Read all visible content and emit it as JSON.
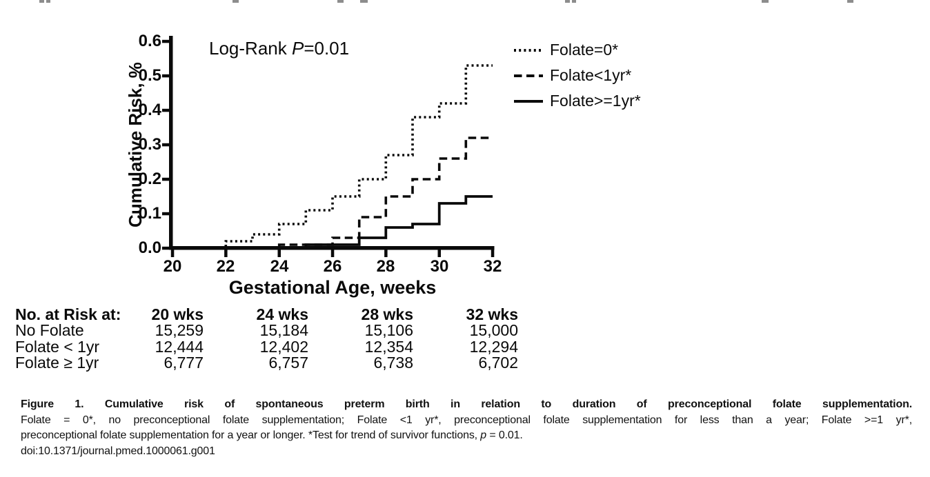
{
  "chart_data": {
    "type": "line",
    "subtype": "kaplan-meier-step-cumulative-risk",
    "annotation": {
      "prefix": "Log-Rank ",
      "italic": "P",
      "suffix": "=0.01"
    },
    "xlabel": "Gestational Age, weeks",
    "ylabel": "Cumulative Risk, %",
    "xlim": [
      20,
      32
    ],
    "ylim": [
      0,
      0.6
    ],
    "x_tick_labels": [
      "20",
      "22",
      "24",
      "26",
      "28",
      "30",
      "32"
    ],
    "y_tick_labels": [
      "0.6",
      "0.5",
      "0.4",
      "0.3",
      "0.2",
      "0.1",
      "0.0"
    ],
    "grid": false,
    "legend_position": "upper right, outside plot",
    "series": [
      {
        "name": "Folate=0*",
        "style": "dotted",
        "steps": [
          [
            22,
            0.02
          ],
          [
            23,
            0.04
          ],
          [
            24,
            0.07
          ],
          [
            25,
            0.11
          ],
          [
            26,
            0.15
          ],
          [
            27,
            0.2
          ],
          [
            28,
            0.27
          ],
          [
            29,
            0.38
          ],
          [
            30,
            0.42
          ],
          [
            31,
            0.53
          ]
        ],
        "end_week": 32,
        "end_value": 0.53
      },
      {
        "name": "Folate<1yr*",
        "style": "dashed",
        "steps": [
          [
            24,
            0.01
          ],
          [
            26,
            0.03
          ],
          [
            27,
            0.09
          ],
          [
            28,
            0.15
          ],
          [
            29,
            0.2
          ],
          [
            30,
            0.26
          ],
          [
            31,
            0.32
          ]
        ],
        "end_week": 32,
        "end_value": 0.32
      },
      {
        "name": "Folate>=1yr*",
        "style": "solid",
        "steps": [
          [
            25,
            0.01
          ],
          [
            27,
            0.03
          ],
          [
            28,
            0.06
          ],
          [
            29,
            0.07
          ],
          [
            30,
            0.13
          ],
          [
            31,
            0.15
          ]
        ],
        "end_week": 32,
        "end_value": 0.15
      }
    ],
    "line_color": "#0a0a0a"
  },
  "risk_table": {
    "header": [
      "No. at Risk at:",
      "20 wks",
      "24 wks",
      "28 wks",
      "32 wks"
    ],
    "rows": [
      {
        "label": "No Folate",
        "values": [
          "15,259",
          "15,184",
          "15,106",
          "15,000"
        ]
      },
      {
        "label": "Folate < 1yr",
        "values": [
          "12,444",
          "12,402",
          "12,354",
          "12,294"
        ]
      },
      {
        "label": "Folate ≥ 1yr",
        "values": [
          "6,777",
          "6,757",
          "6,738",
          "6,702"
        ]
      }
    ]
  },
  "caption": {
    "line1": "Figure 1. Cumulative risk of spontaneous preterm birth in relation to duration of preconceptional folate supplementation.",
    "line2": "Folate = 0*, no preconceptional folate supplementation; Folate <1 yr*, preconceptional folate supplementation for less than a year; Folate >=1 yr*,",
    "line3_pre": "preconceptional folate supplementation for a year or longer. *Test for trend of survivor functions, ",
    "line3_italic": "p",
    "line3_post": " = 0.01.",
    "doi": "doi:10.1371/journal.pmed.1000061.g001"
  }
}
